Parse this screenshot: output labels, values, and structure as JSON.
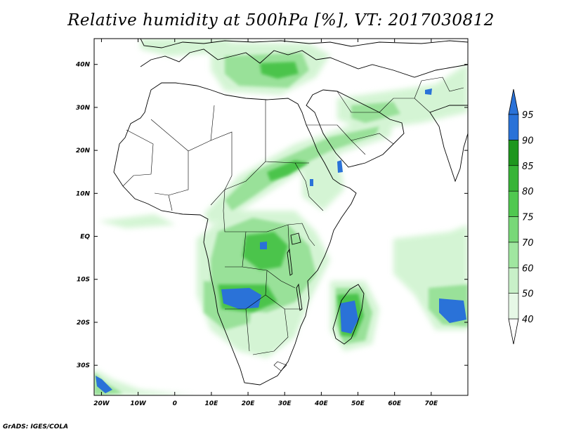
{
  "title": "Relative humidity at 500hPa [%], VT: 2017030812",
  "footer": "GrADS: IGES/COLA",
  "map": {
    "lon_range": [
      -22,
      80
    ],
    "lat_range": [
      -37,
      46
    ],
    "lat_labels": [
      {
        "lat": 40,
        "label": "40N"
      },
      {
        "lat": 30,
        "label": "30N"
      },
      {
        "lat": 20,
        "label": "20N"
      },
      {
        "lat": 10,
        "label": "10N"
      },
      {
        "lat": 0,
        "label": "EQ"
      },
      {
        "lat": -10,
        "label": "10S"
      },
      {
        "lat": -20,
        "label": "20S"
      },
      {
        "lat": -30,
        "label": "30S"
      }
    ],
    "lon_labels": [
      {
        "lon": -20,
        "label": "20W"
      },
      {
        "lon": -10,
        "label": "10W"
      },
      {
        "lon": 0,
        "label": "0"
      },
      {
        "lon": 10,
        "label": "10E"
      },
      {
        "lon": 20,
        "label": "20E"
      },
      {
        "lon": 30,
        "label": "30E"
      },
      {
        "lon": 40,
        "label": "40E"
      },
      {
        "lon": 50,
        "label": "50E"
      },
      {
        "lon": 60,
        "label": "60E"
      },
      {
        "lon": 70,
        "label": "70E"
      }
    ]
  },
  "colorbar": {
    "levels": [
      "40",
      "50",
      "60",
      "70",
      "75",
      "80",
      "85",
      "90",
      "95"
    ],
    "colors": [
      "#ffffff",
      "#e6f8e6",
      "#c8f0c8",
      "#a0e6a0",
      "#78d878",
      "#50c850",
      "#37b437",
      "#1e961e",
      "#2a72d8"
    ],
    "over_color": "#2a72d8"
  },
  "colors": {
    "coast": "#000000",
    "green_low": "#d2f4d2",
    "green_mid": "#96e096",
    "green_high": "#4cc44c",
    "blue": "#2a72d8"
  }
}
